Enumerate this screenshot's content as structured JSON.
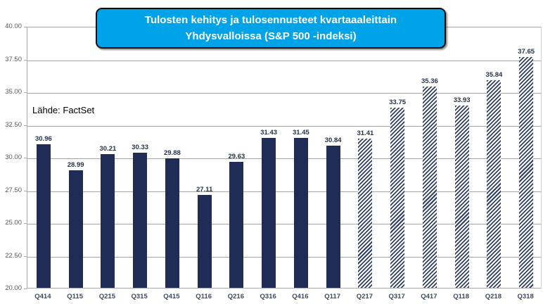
{
  "title": {
    "line1": "Tulosten kehitys ja tulosennusteet kvartaaaleittain",
    "line2": "Yhdysvalloissa (S&P 500 -indeksi)"
  },
  "source_label": "Lähde: FactSet",
  "colors": {
    "bar_solid": "#1f2c55",
    "bar_hatch_stripe": "#2f4068",
    "title_bg": "#00a3e8",
    "title_border": "#0c0c0c",
    "gridline": "#a6a6a6",
    "axis_line": "#ababab",
    "tick_label": "#595959",
    "x_label": "#3d4a63",
    "data_label": "#273349"
  },
  "chart_data": {
    "type": "bar",
    "title": "Tulosten kehitys ja tulosennusteet kvartaaaleittain Yhdysvalloissa (S&P 500 -indeksi)",
    "source": "Lähde: FactSet",
    "categories": [
      "Q414",
      "Q115",
      "Q215",
      "Q315",
      "Q415",
      "Q116",
      "Q216",
      "Q316",
      "Q416",
      "Q117",
      "Q217",
      "Q317",
      "Q417",
      "Q118",
      "Q218",
      "Q318"
    ],
    "values": [
      30.96,
      28.99,
      30.21,
      30.33,
      29.88,
      27.11,
      29.63,
      31.43,
      31.45,
      30.84,
      31.41,
      33.75,
      35.36,
      33.93,
      35.84,
      37.65
    ],
    "hatched": [
      false,
      false,
      false,
      false,
      false,
      false,
      false,
      false,
      false,
      false,
      true,
      true,
      true,
      true,
      true,
      true
    ],
    "hatched_meaning": "forecast bars drawn with diagonal stripe fill, solid bars are realized quarters",
    "ylim": [
      20,
      40
    ],
    "ytick_step": 2.5,
    "ytick_labels": [
      "20.00",
      "22.50",
      "25.00",
      "27.50",
      "30.00",
      "32.50",
      "35.00",
      "37.50",
      "40.00"
    ],
    "xlabel": "",
    "ylabel": "",
    "grid": true,
    "legend": "none",
    "data_labels": true
  }
}
